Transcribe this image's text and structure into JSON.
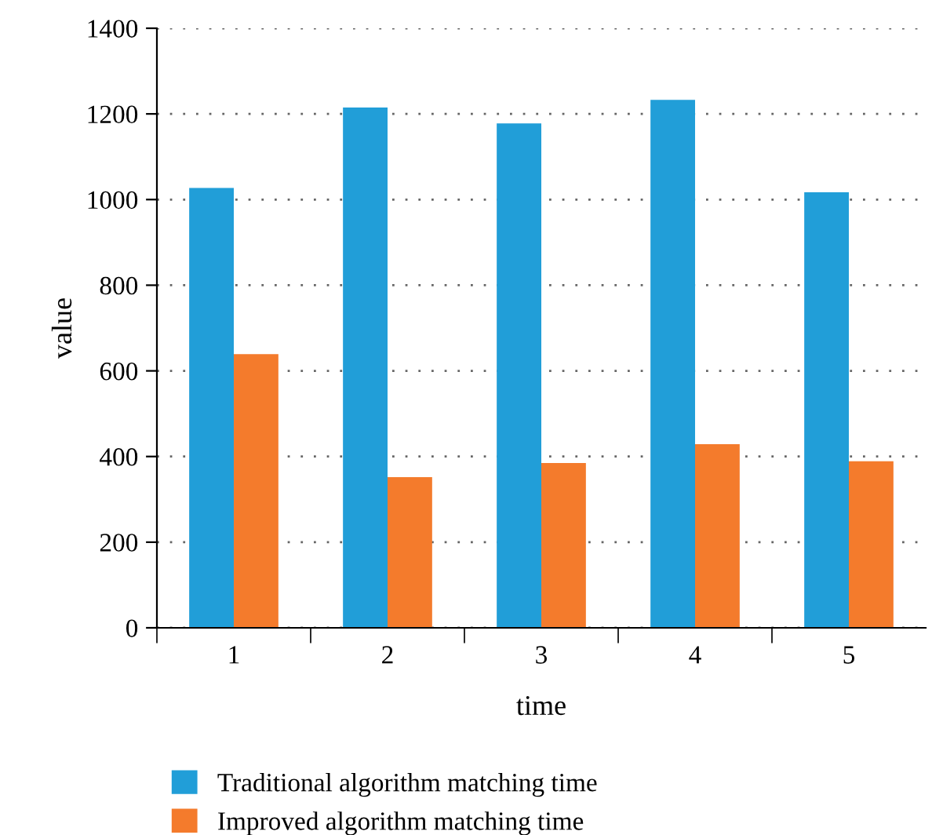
{
  "chart_data": {
    "type": "bar",
    "xlabel": "time",
    "ylabel": "value",
    "categories": [
      "1",
      "2",
      "3",
      "4",
      "5"
    ],
    "series": [
      {
        "name": "Traditional algorithm matching time",
        "color": "#219ed8",
        "values": [
          1027,
          1215,
          1178,
          1233,
          1017
        ]
      },
      {
        "name": "Improved algorithm matching time",
        "color": "#f47b2c",
        "values": [
          639,
          352,
          385,
          429,
          389
        ]
      }
    ],
    "ylim": [
      0,
      1400
    ],
    "yticks": [
      0,
      200,
      400,
      600,
      800,
      1000,
      1200,
      1400
    ],
    "grid": "y",
    "legend": "bottom"
  }
}
